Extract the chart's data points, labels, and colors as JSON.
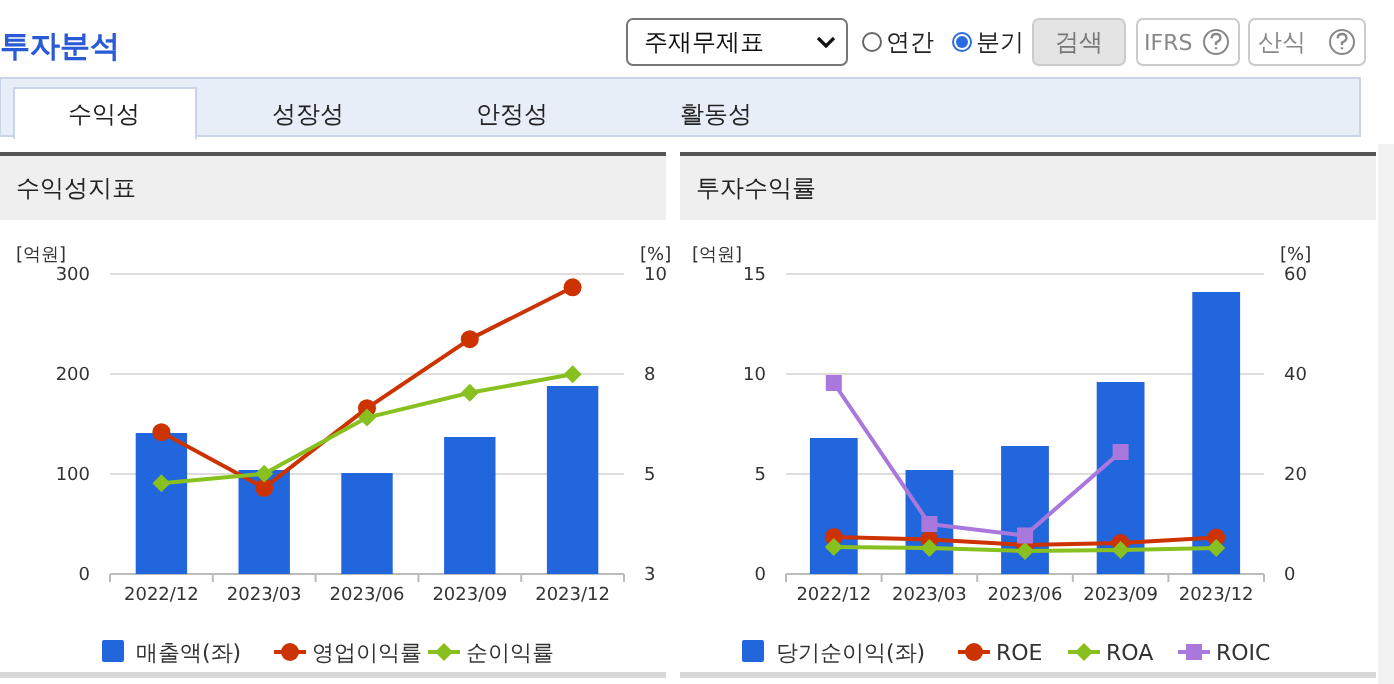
{
  "chart_data": [
    {
      "type": "bar",
      "title": "수익성지표",
      "annotations": [
        "투자분석",
        "주재무제표",
        "연간",
        "분기",
        "검색",
        "IFRS",
        "산식",
        "수익성",
        "성장성",
        "안정성",
        "활동성"
      ],
      "ylabel": "[억원]",
      "y2label": "[%]",
      "categories": [
        "2022/12",
        "2023/03",
        "2023/06",
        "2023/09",
        "2023/12"
      ],
      "ylim": [
        0,
        300
      ],
      "yticks": [
        0,
        100,
        200,
        300
      ],
      "y2lim": [
        3,
        10
      ],
      "y2ticks": [
        3,
        {
          "value": 5.333,
          "label": "5"
        },
        {
          "value": 7.667,
          "label": "8"
        },
        10
      ],
      "grid": "y",
      "legend": "bottom",
      "series": [
        {
          "name": "매출액(좌)",
          "color": "#2266dd",
          "values": [
            141,
            104,
            101,
            137,
            188
          ]
        },
        {
          "name": "영업이익률",
          "type": "line",
          "axis": "y2",
          "marker": "circle",
          "color": "#cc3300",
          "values": [
            6.31,
            5.01,
            6.87,
            8.48,
            9.69
          ]
        },
        {
          "name": "순이익률",
          "type": "line",
          "axis": "y2",
          "marker": "diamond",
          "color": "#88c020",
          "values": [
            5.12,
            5.34,
            6.65,
            7.23,
            7.66
          ]
        }
      ]
    },
    {
      "type": "bar",
      "title": "투자수익률",
      "ylabel": "[억원]",
      "y2label": "[%]",
      "categories": [
        "2022/12",
        "2023/03",
        "2023/06",
        "2023/09",
        "2023/12"
      ],
      "ylim": [
        0,
        15
      ],
      "yticks": [
        0,
        5,
        10,
        15
      ],
      "y2lim": [
        0,
        60
      ],
      "y2ticks": [
        0,
        20,
        40,
        60
      ],
      "grid": "y",
      "legend": "bottom",
      "series": [
        {
          "name": "당기순이익(좌)",
          "color": "#2266dd",
          "values": [
            6.8,
            5.2,
            6.4,
            9.6,
            14.1
          ]
        },
        {
          "name": "ROE",
          "type": "line",
          "axis": "y2",
          "marker": "circle",
          "color": "#cc3300",
          "values": [
            7.4,
            6.9,
            5.8,
            6.2,
            7.3
          ]
        },
        {
          "name": "ROA",
          "type": "line",
          "axis": "y2",
          "marker": "diamond",
          "color": "#88c020",
          "values": [
            5.4,
            5.2,
            4.6,
            4.8,
            5.2
          ]
        },
        {
          "name": "ROIC",
          "type": "line",
          "axis": "y2",
          "marker": "square",
          "color": "#aa77dd",
          "values": [
            38.2,
            10.0,
            7.7,
            24.4,
            null
          ]
        }
      ]
    }
  ]
}
